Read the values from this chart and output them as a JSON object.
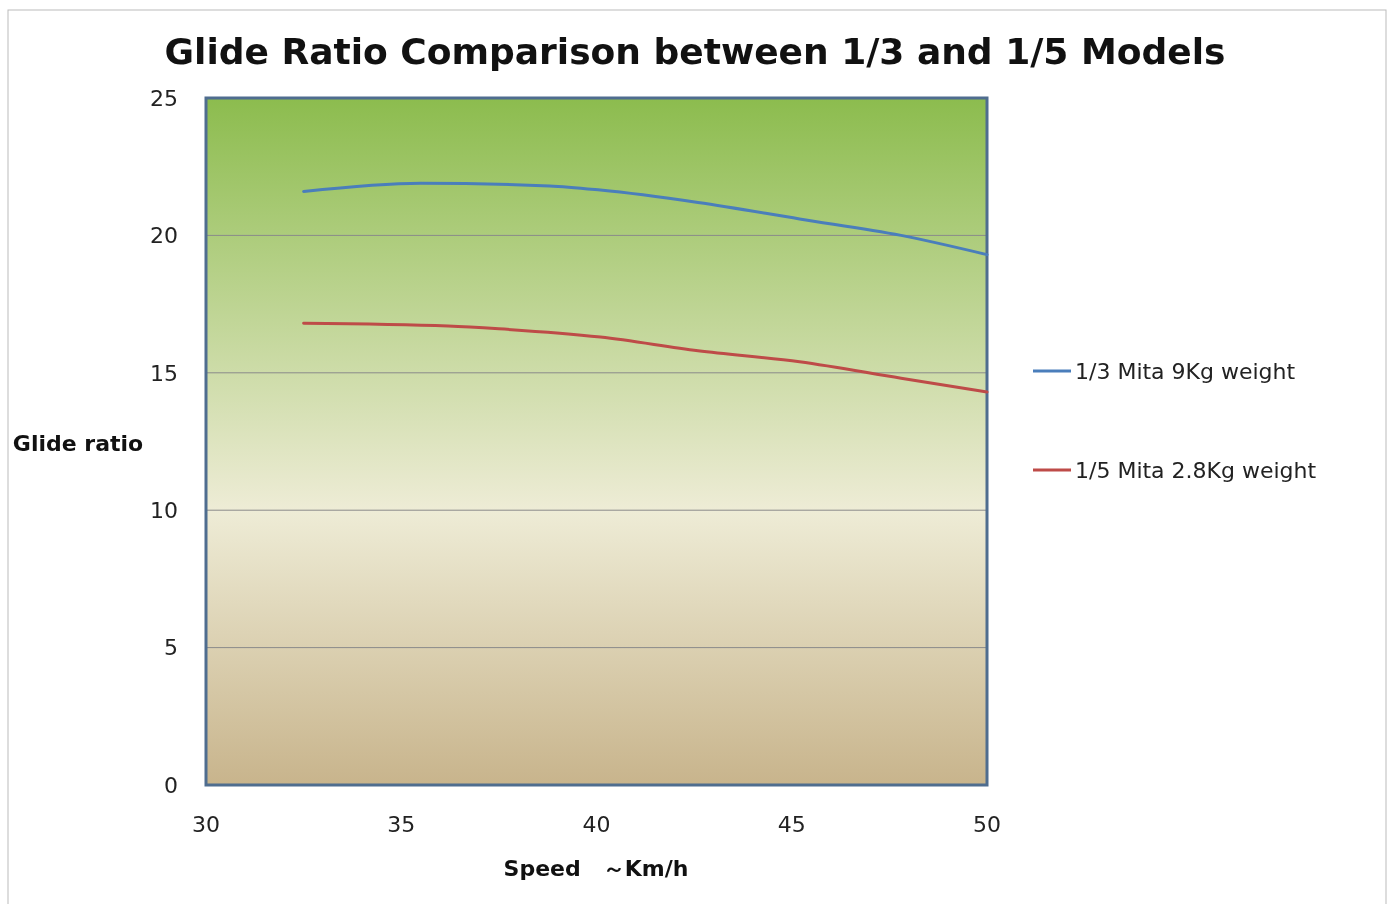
{
  "chart_data": {
    "type": "line",
    "title": "Glide Ratio Comparison between 1/3 and 1/5 Models",
    "xlabel": "Speed　～Km/h",
    "ylabel": "Glide ratio",
    "xlim": [
      30,
      50
    ],
    "xticks": [
      30,
      35,
      40,
      45,
      50
    ],
    "ylim": [
      0,
      25
    ],
    "yticks": [
      0,
      5,
      10,
      15,
      20,
      25
    ],
    "grid": "y",
    "legend": "right",
    "marker": "none",
    "line_style": "solid",
    "series": [
      {
        "name": "1/3 Mita 9Kg weight",
        "color": "#4a7ebb",
        "x": [
          32.5,
          35.5,
          38.8,
          40.1,
          42.6,
          45.2,
          47.8,
          50
        ],
        "values": [
          21.6,
          21.9,
          21.8,
          21.65,
          21.2,
          20.6,
          20.0,
          19.3
        ]
      },
      {
        "name": "1/5 Mita 2.8Kg weight",
        "color": "#be4b48",
        "x": [
          32.5,
          36.2,
          37.5,
          40.1,
          42.6,
          45.2,
          47.8,
          50
        ],
        "values": [
          16.8,
          16.7,
          16.6,
          16.3,
          15.8,
          15.4,
          14.8,
          14.3
        ]
      }
    ]
  }
}
